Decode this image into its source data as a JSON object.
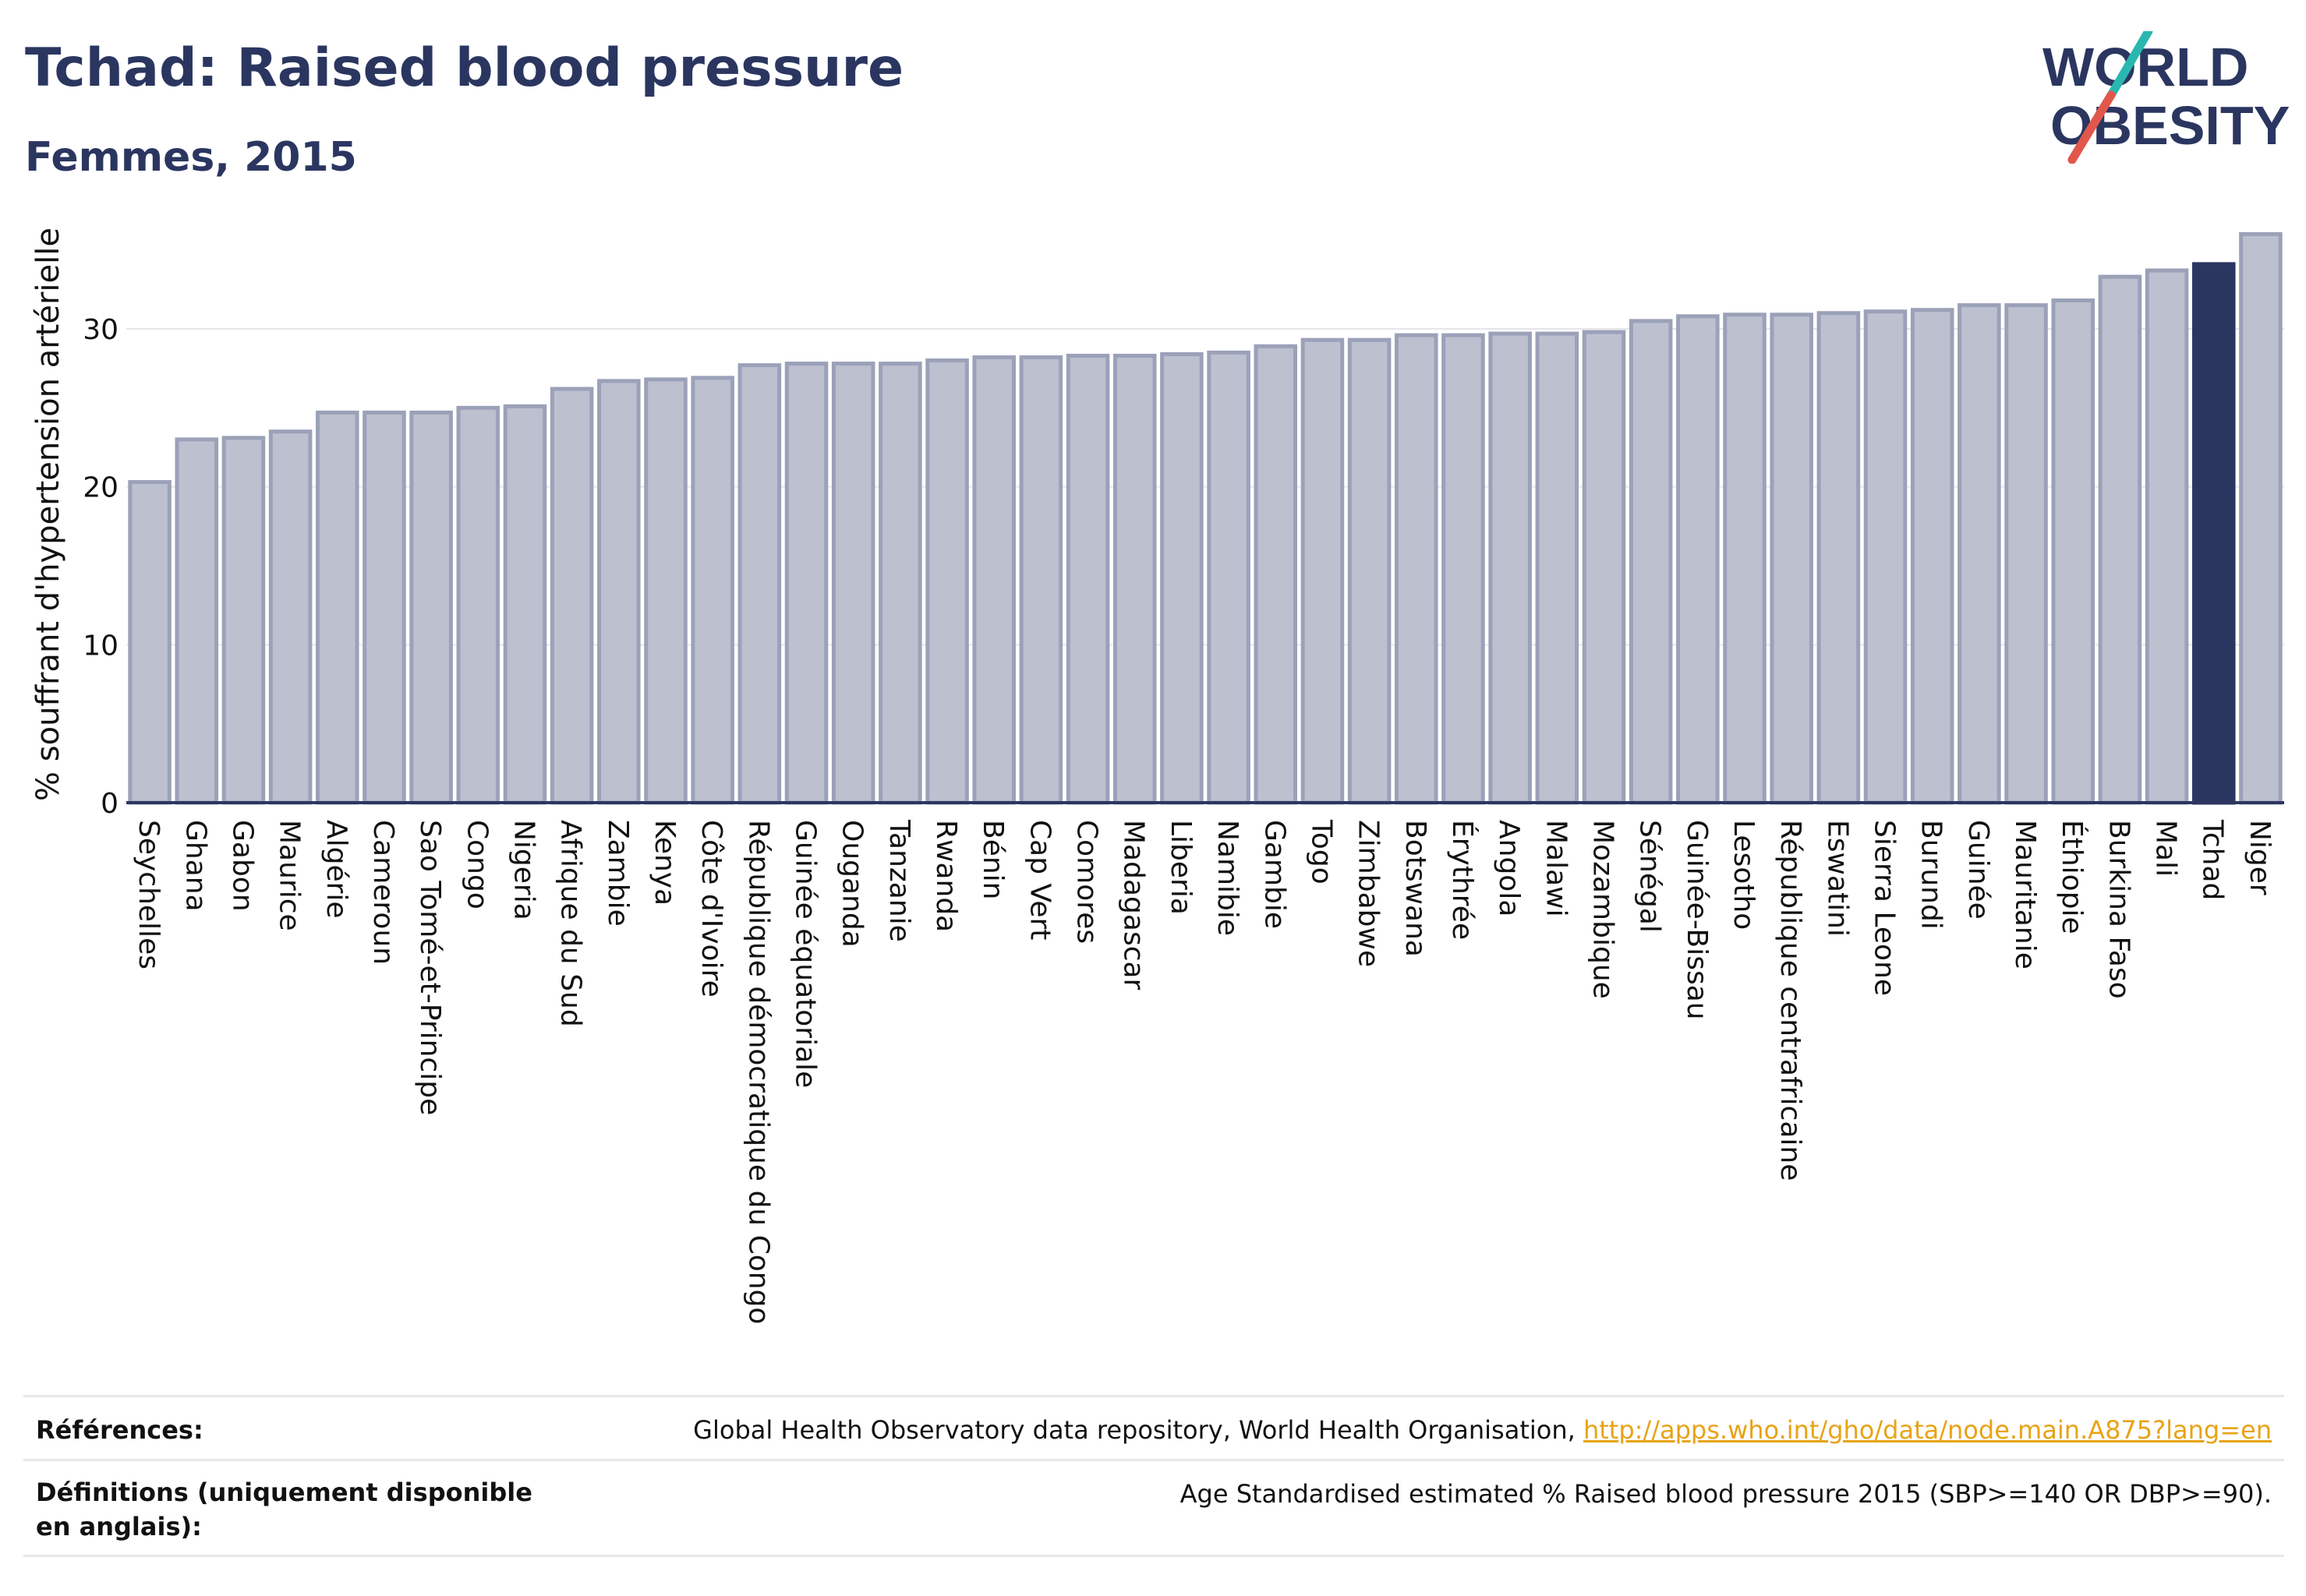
{
  "header": {
    "title": "Tchad: Raised blood pressure",
    "subtitle": "Femmes, 2015"
  },
  "logo": {
    "line1": "WORLD",
    "line2": "OBESITY",
    "colors": {
      "text": "#2b3660",
      "slash_teal": "#2ab7b0",
      "slash_red": "#e2574c"
    }
  },
  "chart_data": {
    "type": "bar",
    "ylabel": "% souffrant d'hypertension artérielle",
    "ylim": [
      0,
      37.5
    ],
    "yticks": [
      0,
      10,
      20,
      30
    ],
    "grid": true,
    "highlight": "Tchad",
    "colors": {
      "bar": "#bcc0cf",
      "bar_edge": "#9ba1b8",
      "highlight": "#2b3660",
      "axis": "#2b3660",
      "grid": "#e6e6e9"
    },
    "categories": [
      "Seychelles",
      "Ghana",
      "Gabon",
      "Maurice",
      "Algérie",
      "Cameroun",
      "Sao Tomé-et-Principe",
      "Congo",
      "Nigeria",
      "Afrique du Sud",
      "Zambie",
      "Kenya",
      "Côte d'Ivoire",
      "République démocratique du Congo",
      "Guinée équatoriale",
      "Ouganda",
      "Tanzanie",
      "Rwanda",
      "Bénin",
      "Cap Vert",
      "Comores",
      "Madagascar",
      "Liberia",
      "Namibie",
      "Gambie",
      "Togo",
      "Zimbabwe",
      "Botswana",
      "Érythrée",
      "Angola",
      "Malawi",
      "Mozambique",
      "Sénégal",
      "Guinée-Bissau",
      "Lesotho",
      "République centrafricaine",
      "Eswatini",
      "Sierra Leone",
      "Burundi",
      "Guinée",
      "Mauritanie",
      "Éthiopie",
      "Burkina Faso",
      "Mali",
      "Tchad",
      "Niger"
    ],
    "values": [
      20.3,
      23.0,
      23.1,
      23.5,
      24.7,
      24.7,
      24.7,
      25.0,
      25.1,
      26.2,
      26.7,
      26.8,
      26.9,
      27.7,
      27.8,
      27.8,
      27.8,
      28.0,
      28.2,
      28.2,
      28.3,
      28.3,
      28.4,
      28.5,
      28.9,
      29.3,
      29.3,
      29.6,
      29.6,
      29.7,
      29.7,
      29.8,
      30.5,
      30.8,
      30.9,
      30.9,
      31.0,
      31.1,
      31.2,
      31.5,
      31.5,
      31.8,
      33.3,
      33.7,
      34.1,
      36.0
    ]
  },
  "references": {
    "label": "Références:",
    "text": "Global Health Observatory data repository, World Health Organisation,",
    "link": "http://apps.who.int/gho/data/node.main.A875?lang=en"
  },
  "definitions": {
    "label": "Définitions (uniquement disponible en anglais):",
    "text": "Age Standardised estimated % Raised blood pressure 2015 (SBP>=140 OR DBP>=90)."
  }
}
